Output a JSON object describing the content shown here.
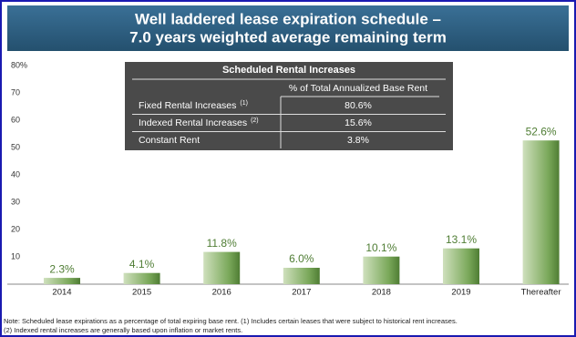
{
  "chart_data": {
    "type": "bar",
    "title": [
      "Well laddered lease expiration schedule –",
      "7.0 years weighted average remaining term"
    ],
    "categories": [
      "2014",
      "2015",
      "2016",
      "2017",
      "2018",
      "2019",
      "Thereafter"
    ],
    "values": [
      2.3,
      4.1,
      11.8,
      6.0,
      10.1,
      13.1,
      52.6
    ],
    "value_labels": [
      "2.3%",
      "4.1%",
      "11.8%",
      "6.0%",
      "10.1%",
      "13.1%",
      "52.6%"
    ],
    "color": "#6a9a4a",
    "ylim": [
      0,
      80
    ],
    "yticks": [
      10,
      20,
      30,
      40,
      50,
      60,
      70,
      {
        "value": 80,
        "label": "80%"
      }
    ],
    "table": {
      "title": "Scheduled Rental Increases",
      "header": "% of Total Annualized Base Rent",
      "rows": [
        {
          "label": "Fixed Rental Increases",
          "note": "(1)",
          "value": "80.6%"
        },
        {
          "label": "Indexed Rental Increases",
          "note": "(2)",
          "value": "15.6%"
        },
        {
          "label": "Constant Rent",
          "value": "3.8%"
        }
      ]
    },
    "notes": [
      "Note: Scheduled lease expirations as a percentage of total expiring base rent.  (1)  Includes certain leases that were subject to historical rent increases.",
      "(2)  Indexed rental increases are generally based upon inflation or market rents."
    ]
  }
}
